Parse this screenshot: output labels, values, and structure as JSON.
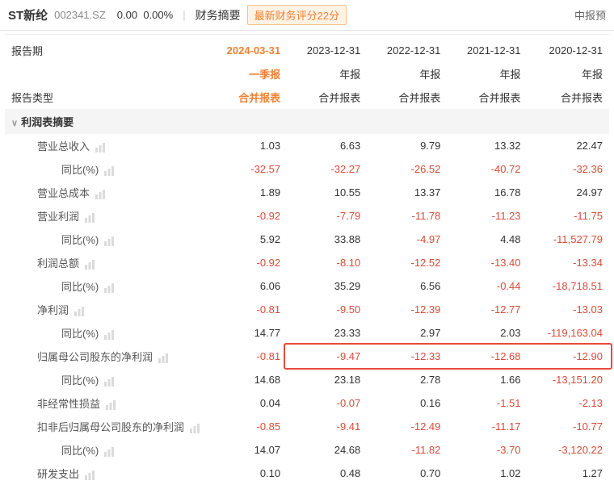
{
  "header": {
    "stock_name": "ST新纶",
    "stock_code": "002341.SZ",
    "price": "0.00",
    "change_pct": "0.00%",
    "summary_label": "财务摘要",
    "rating_badge": "最新财务评分22分",
    "right_link": "中报预"
  },
  "table": {
    "label_period": "报告期",
    "label_type": "报告类型",
    "section_title": "利润表摘要",
    "periods": [
      "2024-03-31",
      "2023-12-31",
      "2022-12-31",
      "2021-12-31",
      "2020-12-31"
    ],
    "period_sub": [
      "一季报",
      "年报",
      "年报",
      "年报",
      "年报"
    ],
    "report_type": [
      "合并报表",
      "合并报表",
      "合并报表",
      "合并报表",
      "合并报表"
    ],
    "highlight_col": 0,
    "highlight_row_index": 7,
    "neg_color": "#d94b3a",
    "normal_color": "#333333",
    "colors": {
      "accent": "#f08030",
      "badge_bg": "#fff3e6",
      "border": "#e0e0e0",
      "section_bg": "#f5f5f5",
      "highlight_border": "#e74c3c"
    },
    "rows": [
      {
        "label": "营业总收入",
        "indent": 1,
        "icon": true,
        "values": [
          "1.03",
          "6.63",
          "9.79",
          "13.32",
          "22.47"
        ],
        "neg": [
          false,
          false,
          false,
          false,
          false
        ]
      },
      {
        "label": "同比(%)",
        "indent": 2,
        "icon": true,
        "values": [
          "-32.57",
          "-32.27",
          "-26.52",
          "-40.72",
          "-32.36"
        ],
        "neg": [
          true,
          true,
          true,
          true,
          true
        ]
      },
      {
        "label": "营业总成本",
        "indent": 1,
        "icon": true,
        "values": [
          "1.89",
          "10.55",
          "13.37",
          "16.78",
          "24.97"
        ],
        "neg": [
          false,
          false,
          false,
          false,
          false
        ]
      },
      {
        "label": "营业利润",
        "indent": 1,
        "icon": true,
        "values": [
          "-0.92",
          "-7.79",
          "-11.78",
          "-11.23",
          "-11.75"
        ],
        "neg": [
          true,
          true,
          true,
          true,
          true
        ]
      },
      {
        "label": "同比(%)",
        "indent": 2,
        "icon": true,
        "values": [
          "5.92",
          "33.88",
          "-4.97",
          "4.48",
          "-11,527.79"
        ],
        "neg": [
          false,
          false,
          true,
          false,
          true
        ]
      },
      {
        "label": "利润总额",
        "indent": 1,
        "icon": true,
        "values": [
          "-0.92",
          "-8.10",
          "-12.52",
          "-13.40",
          "-13.34"
        ],
        "neg": [
          true,
          true,
          true,
          true,
          true
        ]
      },
      {
        "label": "同比(%)",
        "indent": 2,
        "icon": true,
        "values": [
          "6.06",
          "35.29",
          "6.56",
          "-0.44",
          "-18,718.51"
        ],
        "neg": [
          false,
          false,
          false,
          true,
          true
        ]
      },
      {
        "label": "净利润",
        "indent": 1,
        "icon": true,
        "values": [
          "-0.81",
          "-9.50",
          "-12.39",
          "-12.77",
          "-13.03"
        ],
        "neg": [
          true,
          true,
          true,
          true,
          true
        ]
      },
      {
        "label": "同比(%)",
        "indent": 2,
        "icon": true,
        "values": [
          "14.77",
          "23.33",
          "2.97",
          "2.03",
          "-119,163.04"
        ],
        "neg": [
          false,
          false,
          false,
          false,
          true
        ]
      },
      {
        "label": "归属母公司股东的净利润",
        "indent": 1,
        "icon": true,
        "values": [
          "-0.81",
          "-9.47",
          "-12.33",
          "-12.68",
          "-12.90"
        ],
        "neg": [
          true,
          true,
          true,
          true,
          true
        ],
        "highlight": true
      },
      {
        "label": "同比(%)",
        "indent": 2,
        "icon": true,
        "values": [
          "14.68",
          "23.18",
          "2.78",
          "1.66",
          "-13,151.20"
        ],
        "neg": [
          false,
          false,
          false,
          false,
          true
        ]
      },
      {
        "label": "非经常性损益",
        "indent": 1,
        "icon": true,
        "values": [
          "0.04",
          "-0.07",
          "0.16",
          "-1.51",
          "-2.13"
        ],
        "neg": [
          false,
          true,
          false,
          true,
          true
        ]
      },
      {
        "label": "扣非后归属母公司股东的净利润",
        "indent": 1,
        "icon": true,
        "values": [
          "-0.85",
          "-9.41",
          "-12.49",
          "-11.17",
          "-10.77"
        ],
        "neg": [
          true,
          true,
          true,
          true,
          true
        ]
      },
      {
        "label": "同比(%)",
        "indent": 2,
        "icon": true,
        "values": [
          "14.07",
          "24.68",
          "-11.82",
          "-3.70",
          "-3,120.22"
        ],
        "neg": [
          false,
          false,
          true,
          true,
          true
        ]
      },
      {
        "label": "研发支出",
        "indent": 1,
        "icon": true,
        "values": [
          "0.10",
          "0.48",
          "0.70",
          "1.02",
          "1.27"
        ],
        "neg": [
          false,
          false,
          false,
          false,
          false
        ]
      }
    ]
  }
}
